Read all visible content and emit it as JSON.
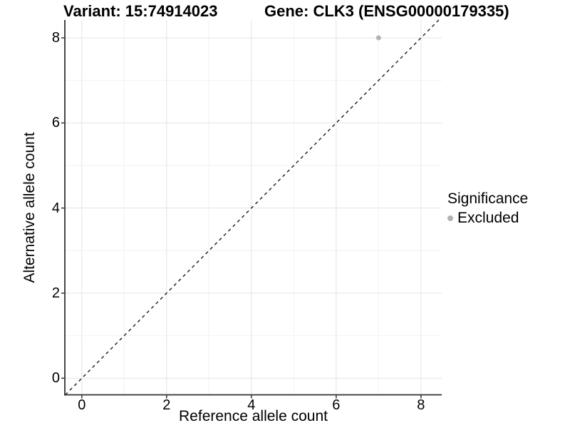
{
  "header": {
    "variant_title": "Variant: 15:74914023",
    "gene_title": "Gene: CLK3 (ENSG00000179335)"
  },
  "legend": {
    "title": "Significance",
    "items": [
      {
        "label": "Excluded",
        "color": "#b3b3b3"
      }
    ]
  },
  "chart_data": {
    "type": "scatter",
    "title": "Variant: 15:74914023   Gene: CLK3 (ENSG00000179335)",
    "xlabel": "Reference allele count",
    "ylabel": "Alternative allele count",
    "xlim": [
      -0.4,
      8.49
    ],
    "ylim": [
      -0.39,
      8.42
    ],
    "x_ticks": [
      0,
      2,
      4,
      6,
      8
    ],
    "y_ticks": [
      0,
      2,
      4,
      6,
      8
    ],
    "x_minor_ticks": [
      1,
      3,
      5,
      7
    ],
    "y_minor_ticks": [
      1,
      3,
      5,
      7
    ],
    "grid": true,
    "legend_position": "right",
    "series": [
      {
        "name": "Excluded",
        "color": "#b3b3b3",
        "points": [
          {
            "x": 7,
            "y": 8
          }
        ]
      }
    ],
    "reference_line": {
      "type": "identity",
      "slope": 1,
      "intercept": 0,
      "style": "dashed",
      "color": "#1a1a1a"
    }
  },
  "colors": {
    "background": "#ffffff",
    "grid_major": "#e4e4e4",
    "grid_minor": "#f2f2f2",
    "axis_line": "#333333",
    "tick_mark": "#333333",
    "text": "#000000",
    "point": "#b3b3b3"
  }
}
